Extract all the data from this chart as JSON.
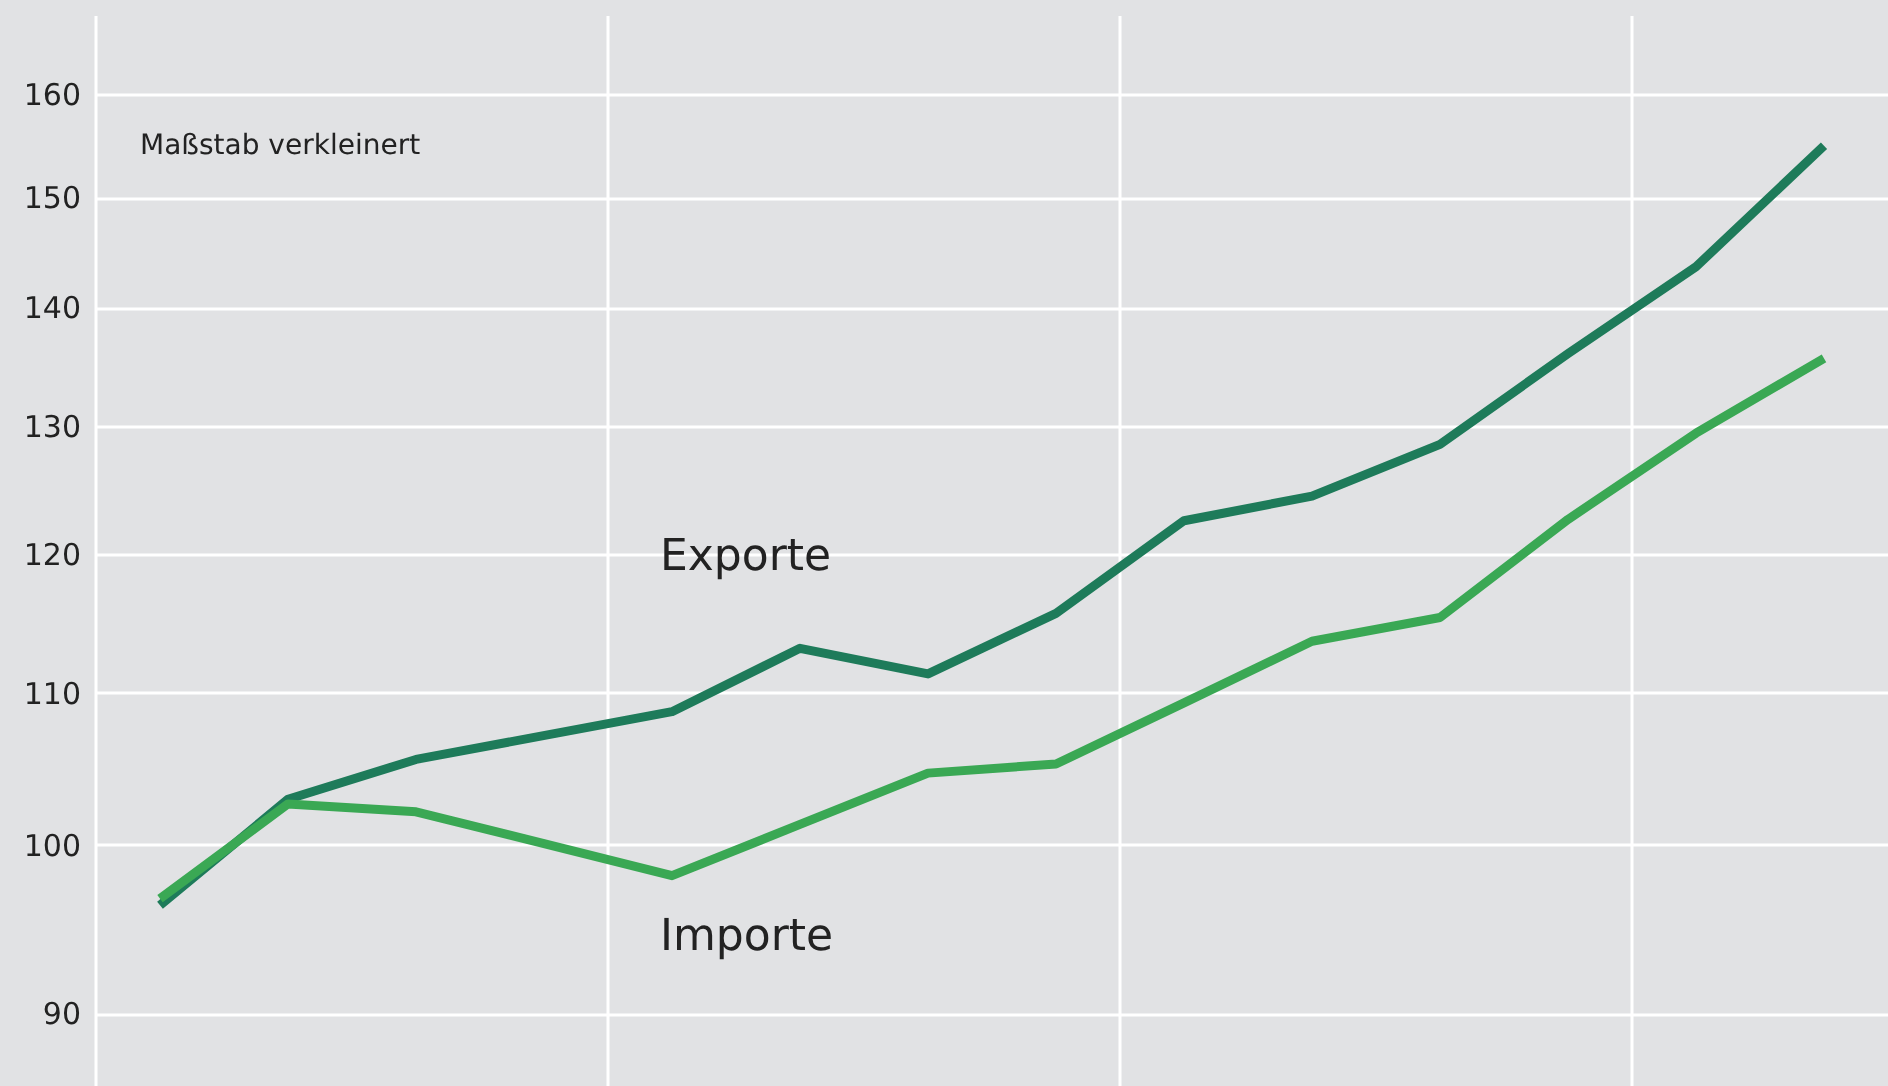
{
  "chart_data": {
    "type": "line",
    "annotations": [
      "Maßstab verkleinert"
    ],
    "categories": [
      null,
      null,
      null,
      null,
      null,
      null,
      null,
      null,
      null,
      null,
      null,
      null,
      null,
      null
    ],
    "ylim": [
      86,
      168
    ],
    "yticks": [
      90,
      100,
      110,
      120,
      130,
      140,
      150,
      160
    ],
    "log": true,
    "grid": true,
    "tick_labels": "y",
    "line_style": "solid",
    "marker": "none",
    "series": [
      {
        "name": "Exporte",
        "color": "#1e7b5a",
        "values": [
          96.3,
          102.9,
          105.5,
          null,
          108.7,
          113.1,
          111.3,
          115.6,
          122.5,
          124.4,
          128.5,
          136.0,
          143.6,
          154.9
        ]
      },
      {
        "name": "Importe",
        "color": "#3aa854",
        "values": [
          96.7,
          102.6,
          102.1,
          null,
          98.1,
          101.3,
          104.6,
          105.2,
          109.3,
          113.6,
          115.3,
          122.6,
          129.4,
          135.6
        ]
      }
    ]
  }
}
